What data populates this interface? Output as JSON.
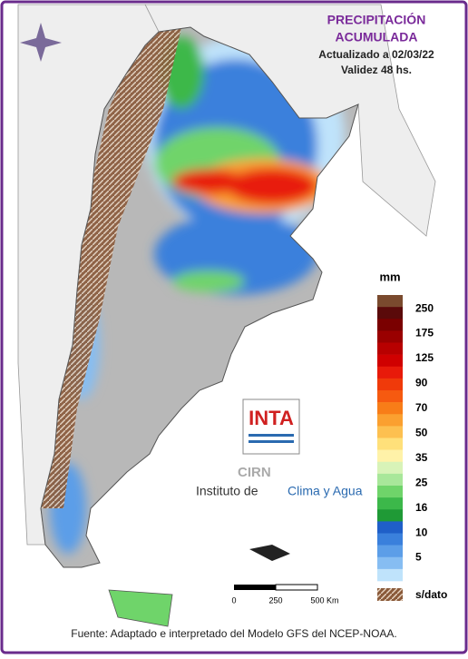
{
  "header": {
    "title_lines": [
      "PRECIPITACIÓN",
      "ACUMULADA"
    ],
    "updated": "Actualizado a 02/03/22",
    "validity": "Validez 48 hs."
  },
  "legend": {
    "title": "mm",
    "colors": [
      "#7a4a2e",
      "#5a0a0a",
      "#7a0000",
      "#9a0000",
      "#b80000",
      "#d00000",
      "#e81a0a",
      "#f03a0a",
      "#f65a10",
      "#f87d18",
      "#fba030",
      "#fdc050",
      "#ffe07a",
      "#fff2a8",
      "#d8f3b8",
      "#a8e79a",
      "#6fd46a",
      "#3cb84a",
      "#1f9a36",
      "#1f5fc8",
      "#3a80dc",
      "#5c9ee8",
      "#86bdf2",
      "#bfe3fb"
    ],
    "labels": [
      250,
      175,
      125,
      90,
      70,
      50,
      35,
      25,
      16,
      10,
      5
    ],
    "no_data_label": "s/dato"
  },
  "scale_bar": {
    "labels": [
      "0",
      "250",
      "500 Km"
    ]
  },
  "logo": {
    "name": "INTA",
    "cirn": "CIRN",
    "institute_prefix": "Instituto de",
    "institute_name": "Clima y Agua"
  },
  "footer": "Fuente: Adaptado e interpretado del Modelo GFS del NCEP-NOAA."
}
